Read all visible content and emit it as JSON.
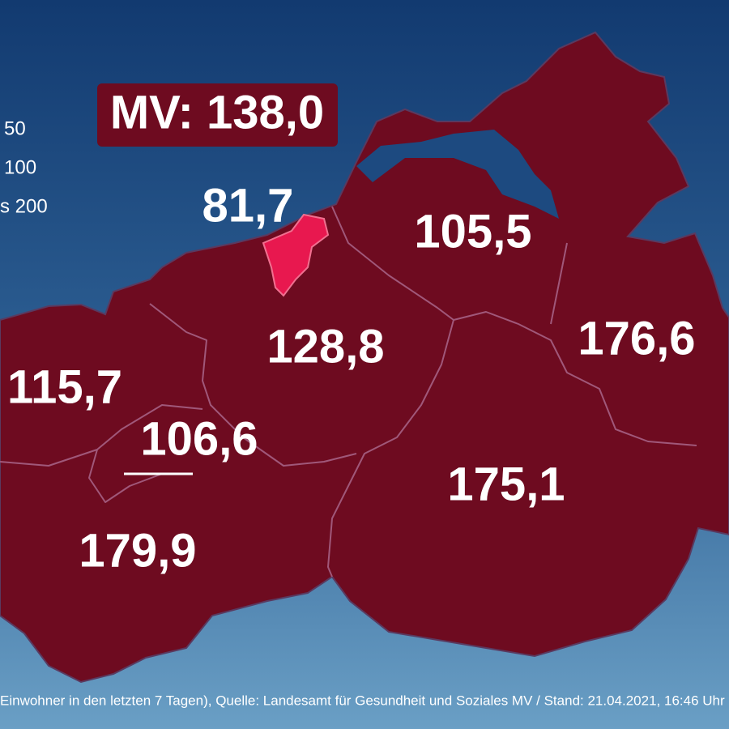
{
  "header": {
    "state_value": "MV: 138,0"
  },
  "legend": {
    "items": [
      "50",
      "100",
      "s 200"
    ]
  },
  "regions": [
    "81,7",
    "105,5",
    "128,8",
    "176,6",
    "115,7",
    "106,6",
    "175,1",
    "179,9"
  ],
  "footer": {
    "source": "Einwohner in den letzten 7 Tagen), Quelle: Landesamt für Gesundheit und Soziales MV / Stand: 21.04.2021, 16:46 Uhr"
  }
}
